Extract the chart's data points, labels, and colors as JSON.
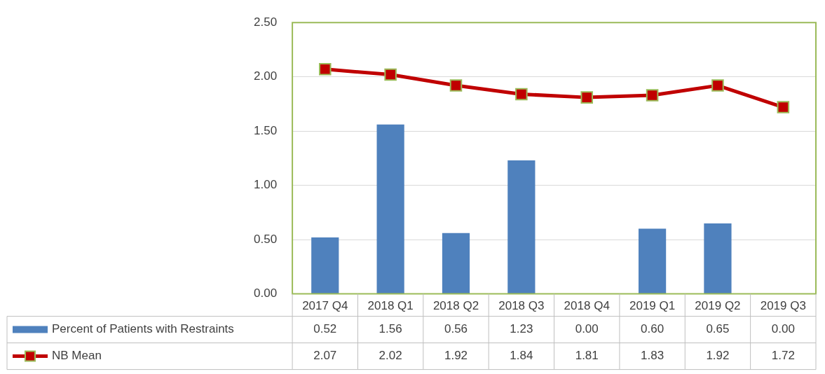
{
  "chart_data": {
    "type": "bar",
    "categories": [
      "2017 Q4",
      "2018 Q1",
      "2018 Q2",
      "2018 Q3",
      "2018 Q4",
      "2019 Q1",
      "2019 Q2",
      "2019 Q3"
    ],
    "series": [
      {
        "name": "Percent of Patients with Restraints",
        "color": "#4f81bd",
        "values": [
          0.52,
          1.56,
          0.56,
          1.23,
          0.0,
          0.6,
          0.65,
          0.0
        ],
        "value_labels": [
          "0.52",
          "1.56",
          "0.56",
          "1.23",
          "0.00",
          "0.60",
          "0.65",
          "0.00"
        ]
      },
      {
        "name": "NB Mean",
        "type": "line",
        "color": "#c00000",
        "marker": "square",
        "values": [
          2.07,
          2.02,
          1.92,
          1.84,
          1.81,
          1.83,
          1.92,
          1.72
        ],
        "value_labels": [
          "2.07",
          "2.02",
          "1.92",
          "1.84",
          "1.81",
          "1.83",
          "1.92",
          "1.72"
        ]
      }
    ],
    "ylim": [
      0,
      2.5
    ],
    "yticks": [
      {
        "value": 0,
        "label": "0.00"
      },
      {
        "value": 0.5,
        "label": "0.50"
      },
      {
        "value": 1,
        "label": "1.00"
      },
      {
        "value": 1.5,
        "label": "1.50"
      },
      {
        "value": 2,
        "label": "2.00"
      },
      {
        "value": 2.5,
        "label": "2.50"
      }
    ],
    "grid": "y",
    "legend": "bottom"
  }
}
